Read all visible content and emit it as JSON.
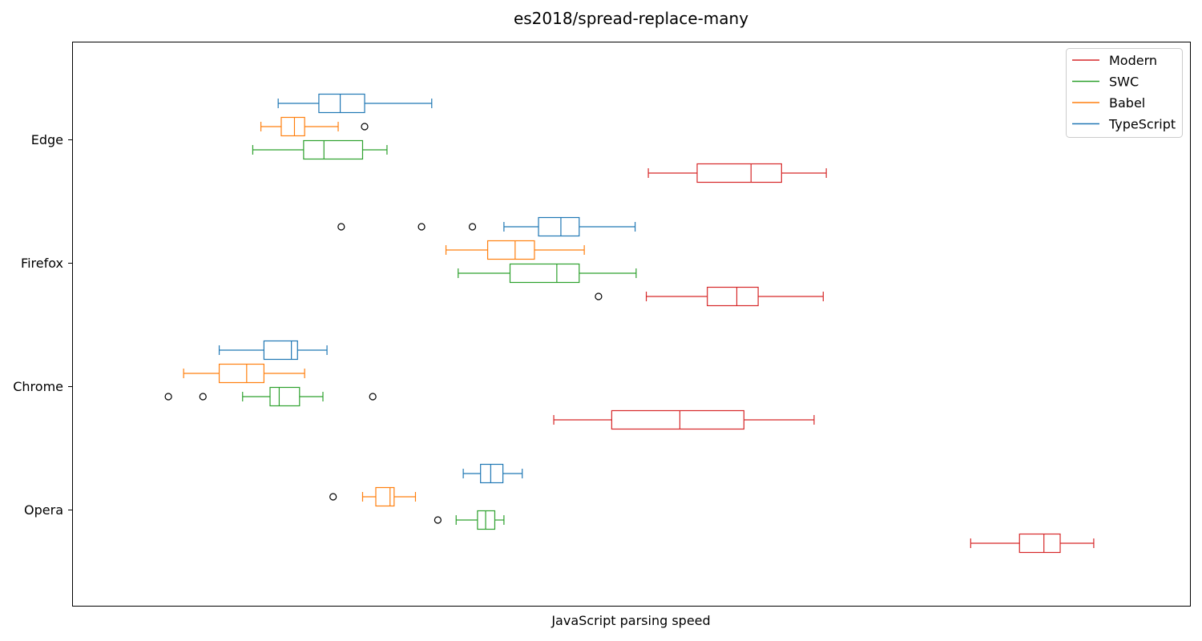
{
  "chart_data": {
    "type": "boxplot",
    "orientation": "horizontal",
    "title": "es2018/spread-replace-many",
    "xlabel": "JavaScript parsing speed",
    "ylabel": "",
    "x_ticks_shown": false,
    "grid": false,
    "legend_position": "top-right",
    "xlim": [
      0,
      1000
    ],
    "categories": [
      "Edge",
      "Firefox",
      "Chrome",
      "Opera"
    ],
    "series": [
      {
        "name": "Modern",
        "color": "#d62728",
        "boxes": [
          {
            "category": "Edge",
            "whislo": 517,
            "q1": 565,
            "med": 618,
            "q3": 648,
            "whishi": 692,
            "fliers": []
          },
          {
            "category": "Firefox",
            "whislo": 515,
            "q1": 575,
            "med": 604,
            "q3": 625,
            "whishi": 689,
            "fliers": [
              468
            ]
          },
          {
            "category": "Chrome",
            "whislo": 424,
            "q1": 481,
            "med": 548,
            "q3": 611,
            "whishi": 680,
            "fliers": []
          },
          {
            "category": "Opera",
            "whislo": 834,
            "q1": 882,
            "med": 906,
            "q3": 922,
            "whishi": 955,
            "fliers": []
          }
        ]
      },
      {
        "name": "SWC",
        "color": "#2ca02c",
        "boxes": [
          {
            "category": "Edge",
            "whislo": 128,
            "q1": 178,
            "med": 198,
            "q3": 236,
            "whishi": 260,
            "fliers": []
          },
          {
            "category": "Firefox",
            "whislo": 330,
            "q1": 381,
            "med": 427,
            "q3": 449,
            "whishi": 505,
            "fliers": []
          },
          {
            "category": "Chrome",
            "whislo": 118,
            "q1": 145,
            "med": 154,
            "q3": 174,
            "whishi": 197,
            "fliers": [
              45,
              79,
              246
            ]
          },
          {
            "category": "Opera",
            "whislo": 328,
            "q1": 349,
            "med": 357,
            "q3": 366,
            "whishi": 375,
            "fliers": [
              310
            ]
          }
        ]
      },
      {
        "name": "Babel",
        "color": "#ff7f0e",
        "boxes": [
          {
            "category": "Edge",
            "whislo": 136,
            "q1": 156,
            "med": 169,
            "q3": 179,
            "whishi": 212,
            "fliers": [
              238
            ]
          },
          {
            "category": "Firefox",
            "whislo": 318,
            "q1": 359,
            "med": 386,
            "q3": 405,
            "whishi": 454,
            "fliers": []
          },
          {
            "category": "Chrome",
            "whislo": 60,
            "q1": 95,
            "med": 122,
            "q3": 139,
            "whishi": 179,
            "fliers": []
          },
          {
            "category": "Opera",
            "whislo": 236,
            "q1": 249,
            "med": 263,
            "q3": 267,
            "whishi": 288,
            "fliers": [
              207
            ]
          }
        ]
      },
      {
        "name": "TypeScript",
        "color": "#1f77b4",
        "boxes": [
          {
            "category": "Edge",
            "whislo": 153,
            "q1": 193,
            "med": 214,
            "q3": 238,
            "whishi": 304,
            "fliers": []
          },
          {
            "category": "Firefox",
            "whislo": 375,
            "q1": 409,
            "med": 431,
            "q3": 449,
            "whishi": 504,
            "fliers": [
              215,
              294,
              344
            ]
          },
          {
            "category": "Chrome",
            "whislo": 95,
            "q1": 139,
            "med": 166,
            "q3": 172,
            "whishi": 201,
            "fliers": []
          },
          {
            "category": "Opera",
            "whislo": 335,
            "q1": 352,
            "med": 362,
            "q3": 374,
            "whishi": 393,
            "fliers": []
          }
        ]
      }
    ]
  }
}
